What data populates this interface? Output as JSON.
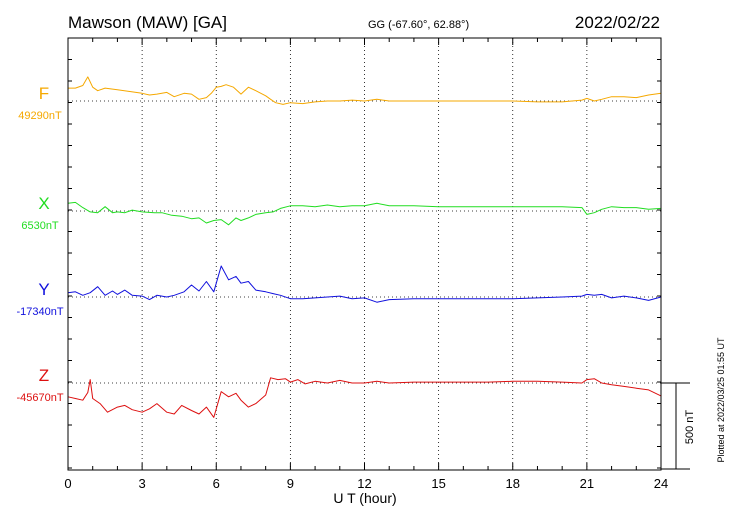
{
  "header": {
    "station": "Mawson (MAW)  [GA]",
    "coords": "GG (-67.60°,  62.88°)",
    "date": "2022/02/22"
  },
  "footer": {
    "plotted_note": "Plotted at 2022/03/25 01:55 UT"
  },
  "chart_data": {
    "type": "line",
    "xlabel": "U T (hour)",
    "xlim": [
      0,
      24
    ],
    "x_ticks": [
      "0",
      "3",
      "6",
      "9",
      "12",
      "15",
      "18",
      "21",
      "24"
    ],
    "scale_bar_label": "500 nT",
    "scale_bar_nT": 500,
    "series": [
      {
        "name": "F",
        "baseline_label": "49290nT",
        "baseline_nT": 49290,
        "color": "#f5a800",
        "points": [
          [
            0,
            75
          ],
          [
            0.3,
            75
          ],
          [
            0.6,
            90
          ],
          [
            0.8,
            140
          ],
          [
            1.0,
            80
          ],
          [
            1.2,
            60
          ],
          [
            1.5,
            75
          ],
          [
            2.0,
            65
          ],
          [
            2.5,
            55
          ],
          [
            3.0,
            45
          ],
          [
            3.3,
            35
          ],
          [
            3.6,
            40
          ],
          [
            4.0,
            50
          ],
          [
            4.3,
            25
          ],
          [
            4.7,
            45
          ],
          [
            5.0,
            40
          ],
          [
            5.3,
            10
          ],
          [
            5.6,
            20
          ],
          [
            5.8,
            45
          ],
          [
            6.0,
            80
          ],
          [
            6.2,
            85
          ],
          [
            6.4,
            95
          ],
          [
            6.7,
            80
          ],
          [
            7.0,
            40
          ],
          [
            7.3,
            80
          ],
          [
            7.6,
            60
          ],
          [
            8.0,
            30
          ],
          [
            8.2,
            10
          ],
          [
            8.4,
            -10
          ],
          [
            8.7,
            -20
          ],
          [
            9.0,
            -10
          ],
          [
            9.5,
            -15
          ],
          [
            10.0,
            -5
          ],
          [
            10.5,
            0
          ],
          [
            11.0,
            0
          ],
          [
            11.5,
            5
          ],
          [
            12.0,
            0
          ],
          [
            12.5,
            10
          ],
          [
            13.0,
            0
          ],
          [
            14.0,
            0
          ],
          [
            15.0,
            0
          ],
          [
            16.0,
            0
          ],
          [
            17.0,
            0
          ],
          [
            18.0,
            0
          ],
          [
            19.0,
            -5
          ],
          [
            20.0,
            -5
          ],
          [
            20.8,
            5
          ],
          [
            21.0,
            15
          ],
          [
            21.3,
            0
          ],
          [
            21.6,
            10
          ],
          [
            22.0,
            25
          ],
          [
            22.5,
            25
          ],
          [
            23.0,
            20
          ],
          [
            23.5,
            35
          ],
          [
            24.0,
            45
          ]
        ]
      },
      {
        "name": "X",
        "baseline_label": "6530nT",
        "baseline_nT": 6530,
        "color": "#22dd22",
        "points": [
          [
            0,
            45
          ],
          [
            0.3,
            50
          ],
          [
            0.6,
            20
          ],
          [
            0.9,
            -5
          ],
          [
            1.2,
            -10
          ],
          [
            1.5,
            25
          ],
          [
            1.8,
            -10
          ],
          [
            2.0,
            -5
          ],
          [
            2.3,
            -10
          ],
          [
            2.6,
            5
          ],
          [
            3.0,
            -5
          ],
          [
            3.5,
            -10
          ],
          [
            3.8,
            -10
          ],
          [
            4.2,
            -25
          ],
          [
            4.6,
            -30
          ],
          [
            5.0,
            -45
          ],
          [
            5.3,
            -40
          ],
          [
            5.6,
            -70
          ],
          [
            5.9,
            -55
          ],
          [
            6.2,
            -50
          ],
          [
            6.5,
            -80
          ],
          [
            6.8,
            -40
          ],
          [
            7.0,
            -55
          ],
          [
            7.3,
            -40
          ],
          [
            7.6,
            -20
          ],
          [
            8.0,
            -10
          ],
          [
            8.3,
            -5
          ],
          [
            8.6,
            15
          ],
          [
            9.0,
            30
          ],
          [
            9.5,
            30
          ],
          [
            10.0,
            25
          ],
          [
            10.5,
            35
          ],
          [
            11.0,
            25
          ],
          [
            11.5,
            30
          ],
          [
            12.0,
            30
          ],
          [
            12.5,
            45
          ],
          [
            13.0,
            30
          ],
          [
            14.0,
            30
          ],
          [
            15.0,
            25
          ],
          [
            16.0,
            25
          ],
          [
            17.0,
            25
          ],
          [
            18.0,
            25
          ],
          [
            19.0,
            25
          ],
          [
            20.0,
            25
          ],
          [
            20.8,
            20
          ],
          [
            21.0,
            -20
          ],
          [
            21.3,
            -10
          ],
          [
            21.6,
            10
          ],
          [
            22.0,
            25
          ],
          [
            22.5,
            20
          ],
          [
            23.0,
            20
          ],
          [
            23.5,
            10
          ],
          [
            24.0,
            15
          ]
        ]
      },
      {
        "name": "Y",
        "baseline_label": "-17340nT",
        "baseline_nT": -17340,
        "color": "#1010dd",
        "points": [
          [
            0,
            25
          ],
          [
            0.3,
            30
          ],
          [
            0.6,
            10
          ],
          [
            0.9,
            25
          ],
          [
            1.2,
            60
          ],
          [
            1.5,
            10
          ],
          [
            1.8,
            35
          ],
          [
            2.0,
            15
          ],
          [
            2.3,
            40
          ],
          [
            2.6,
            10
          ],
          [
            3.0,
            5
          ],
          [
            3.3,
            -15
          ],
          [
            3.6,
            10
          ],
          [
            4.0,
            0
          ],
          [
            4.3,
            10
          ],
          [
            4.7,
            30
          ],
          [
            5.0,
            70
          ],
          [
            5.3,
            35
          ],
          [
            5.6,
            90
          ],
          [
            5.9,
            30
          ],
          [
            6.2,
            180
          ],
          [
            6.5,
            100
          ],
          [
            6.8,
            120
          ],
          [
            7.0,
            80
          ],
          [
            7.3,
            90
          ],
          [
            7.6,
            40
          ],
          [
            8.0,
            30
          ],
          [
            8.3,
            20
          ],
          [
            8.6,
            10
          ],
          [
            9.0,
            -10
          ],
          [
            9.5,
            -10
          ],
          [
            10.0,
            -5
          ],
          [
            10.5,
            0
          ],
          [
            11.0,
            5
          ],
          [
            11.5,
            -10
          ],
          [
            12.0,
            -5
          ],
          [
            12.5,
            -30
          ],
          [
            13.0,
            -15
          ],
          [
            14.0,
            -10
          ],
          [
            15.0,
            -10
          ],
          [
            16.0,
            -10
          ],
          [
            17.0,
            -10
          ],
          [
            18.0,
            -10
          ],
          [
            19.0,
            -5
          ],
          [
            20.0,
            0
          ],
          [
            20.8,
            5
          ],
          [
            21.0,
            15
          ],
          [
            21.3,
            10
          ],
          [
            21.6,
            15
          ],
          [
            22.0,
            -5
          ],
          [
            22.5,
            5
          ],
          [
            23.0,
            -5
          ],
          [
            23.5,
            -20
          ],
          [
            24.0,
            0
          ]
        ]
      },
      {
        "name": "Z",
        "baseline_label": "-45670nT",
        "baseline_nT": -45670,
        "color": "#dd1010",
        "points": [
          [
            0,
            -80
          ],
          [
            0.3,
            -90
          ],
          [
            0.6,
            -100
          ],
          [
            0.8,
            -55
          ],
          [
            0.9,
            20
          ],
          [
            1.0,
            -90
          ],
          [
            1.3,
            -120
          ],
          [
            1.6,
            -170
          ],
          [
            2.0,
            -140
          ],
          [
            2.3,
            -130
          ],
          [
            2.6,
            -155
          ],
          [
            3.0,
            -170
          ],
          [
            3.3,
            -150
          ],
          [
            3.6,
            -120
          ],
          [
            4.0,
            -170
          ],
          [
            4.3,
            -180
          ],
          [
            4.6,
            -130
          ],
          [
            5.0,
            -160
          ],
          [
            5.3,
            -180
          ],
          [
            5.6,
            -140
          ],
          [
            5.9,
            -200
          ],
          [
            6.2,
            -50
          ],
          [
            6.5,
            -80
          ],
          [
            6.8,
            -60
          ],
          [
            7.0,
            -100
          ],
          [
            7.3,
            -140
          ],
          [
            7.6,
            -120
          ],
          [
            8.0,
            -70
          ],
          [
            8.2,
            30
          ],
          [
            8.5,
            20
          ],
          [
            8.8,
            25
          ],
          [
            9.0,
            5
          ],
          [
            9.3,
            20
          ],
          [
            9.6,
            -5
          ],
          [
            10.0,
            10
          ],
          [
            10.5,
            0
          ],
          [
            11.0,
            15
          ],
          [
            11.5,
            0
          ],
          [
            12.0,
            0
          ],
          [
            12.5,
            10
          ],
          [
            13.0,
            0
          ],
          [
            14.0,
            5
          ],
          [
            15.0,
            5
          ],
          [
            16.0,
            5
          ],
          [
            17.0,
            5
          ],
          [
            18.0,
            10
          ],
          [
            19.0,
            10
          ],
          [
            20.0,
            5
          ],
          [
            20.8,
            0
          ],
          [
            21.0,
            20
          ],
          [
            21.3,
            25
          ],
          [
            21.6,
            0
          ],
          [
            22.0,
            -10
          ],
          [
            22.5,
            -20
          ],
          [
            23.0,
            -30
          ],
          [
            23.5,
            -40
          ],
          [
            24.0,
            -75
          ]
        ]
      }
    ]
  }
}
